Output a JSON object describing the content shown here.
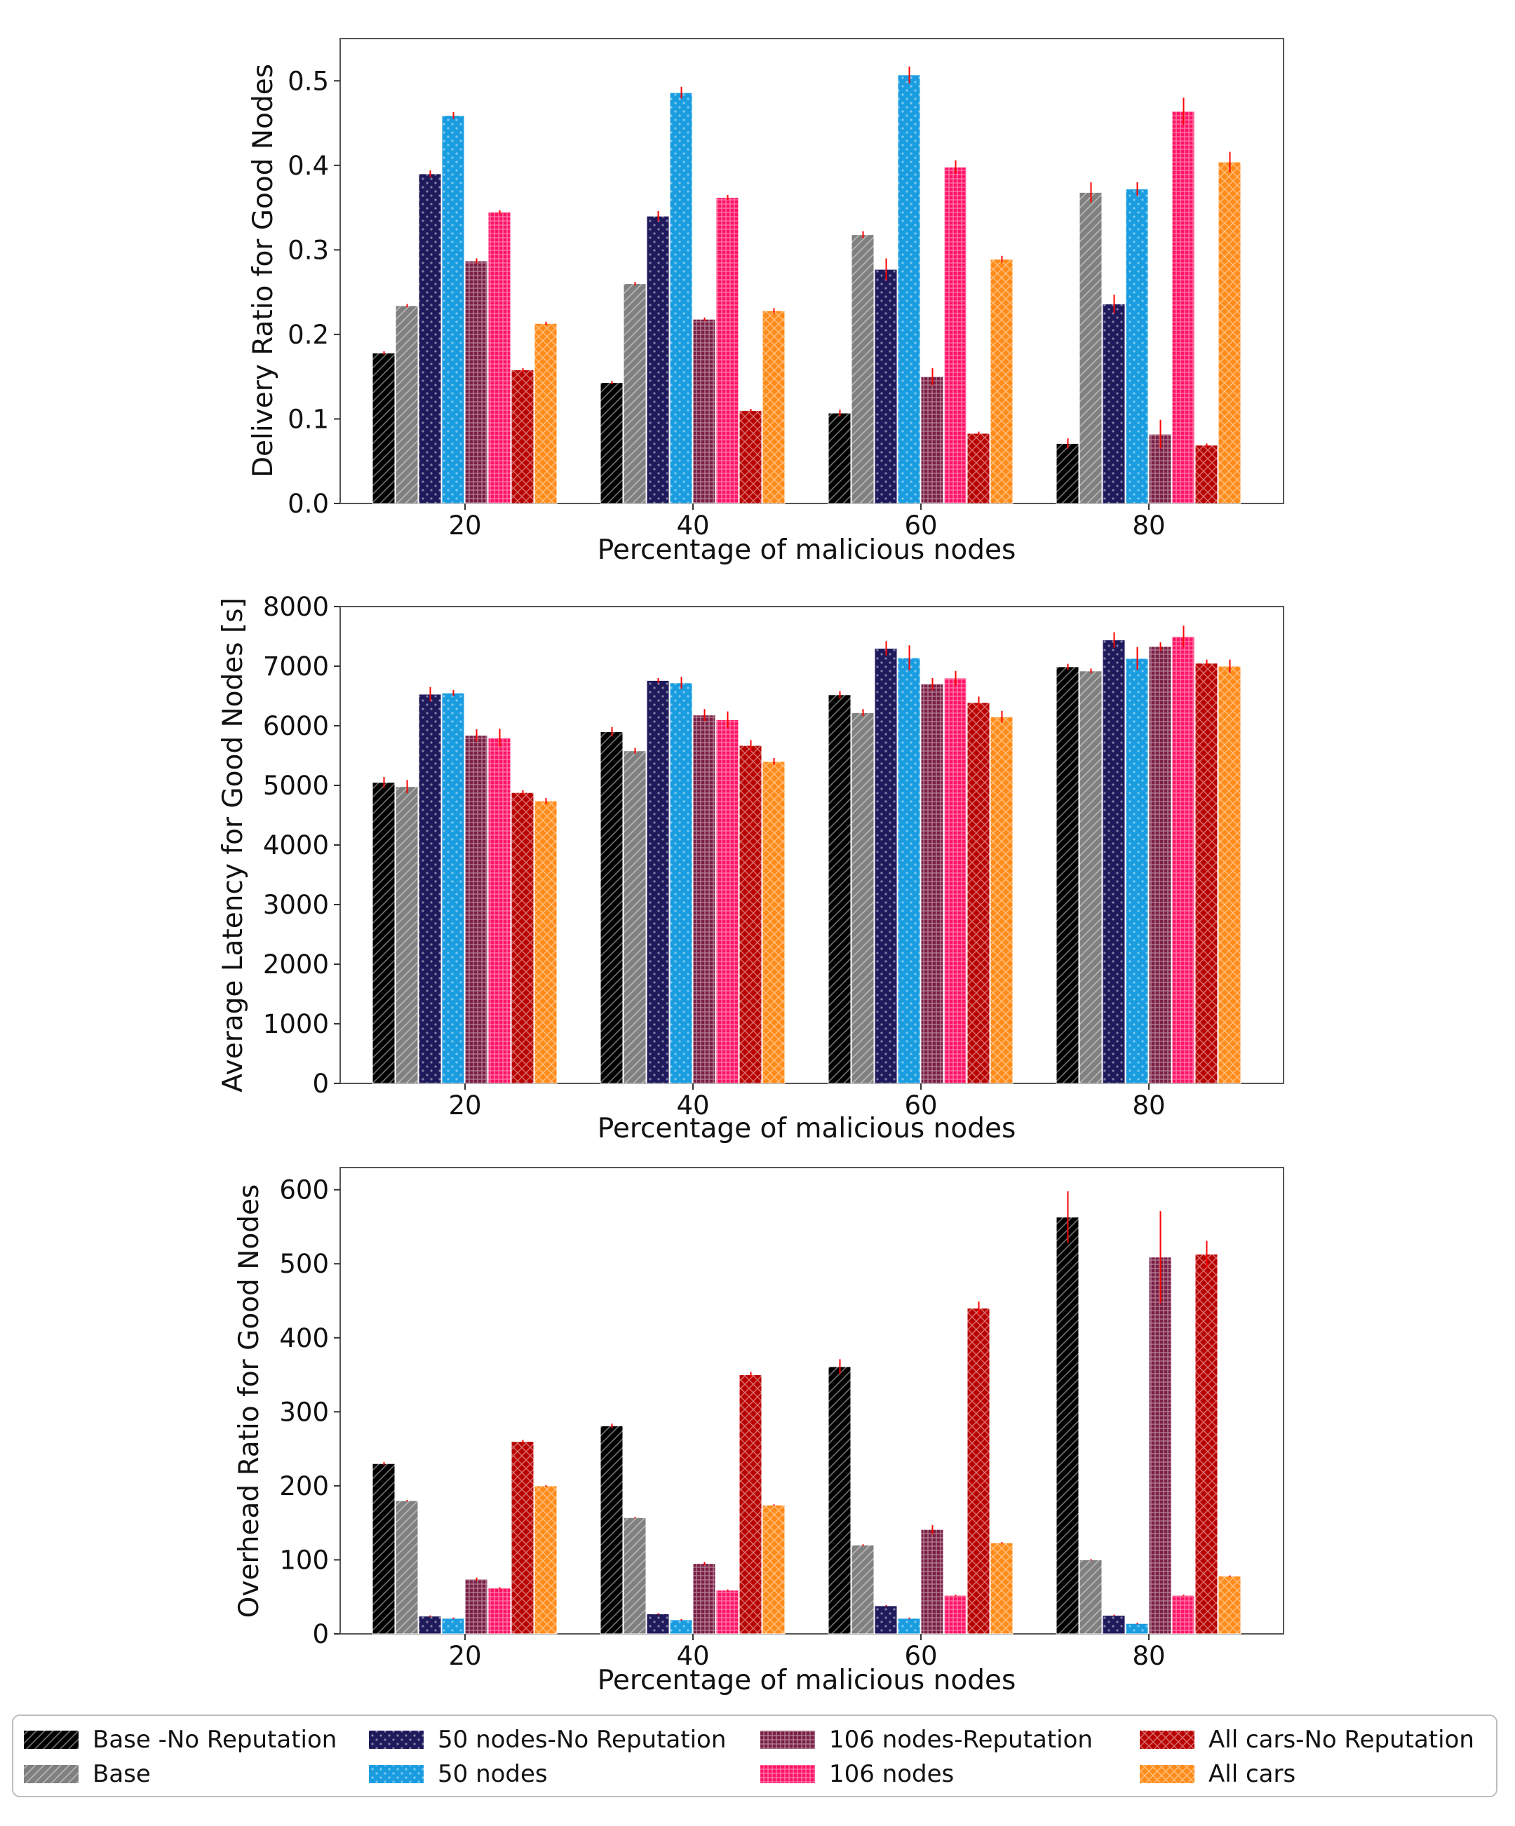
{
  "colors": {
    "Base -No Reputation": "#000000",
    "Base": "#808080",
    "50 nodes-No Reputation": "#1f1a5c",
    "50 nodes": "#1a9de0",
    "106 nodes-Reputation": "#7a1f45",
    "106 nodes": "#ff1466",
    "All cars-No Reputation": "#b80000",
    "All cars": "#ff8c1a",
    "error": "#ff0000"
  },
  "patterns": {
    "Base -No Reputation": "diag",
    "Base": "diag",
    "50 nodes-No Reputation": "dots",
    "50 nodes": "dots",
    "106 nodes-Reputation": "grid",
    "106 nodes": "grid",
    "All cars-No Reputation": "cross",
    "All cars": "cross"
  },
  "legend": {
    "entries": [
      "Base -No Reputation",
      "Base",
      "50 nodes-No Reputation",
      "50 nodes",
      "106 nodes-Reputation",
      "106 nodes",
      "All cars-No Reputation",
      "All cars"
    ]
  },
  "chart_data": [
    {
      "type": "bar",
      "title": "",
      "xlabel": "Percentage of malicious nodes",
      "ylabel": "Delivery Ratio for Good Nodes",
      "categories": [
        "20",
        "40",
        "60",
        "80"
      ],
      "ylim": [
        0,
        0.55
      ],
      "yticks": [
        0.0,
        0.1,
        0.2,
        0.3,
        0.4,
        0.5
      ],
      "ytick_labels": [
        "0.0",
        "0.1",
        "0.2",
        "0.3",
        "0.4",
        "0.5"
      ],
      "series": [
        {
          "name": "Base -No Reputation",
          "values": [
            0.178,
            0.143,
            0.107,
            0.071
          ],
          "errors": [
            0.002,
            0.002,
            0.004,
            0.006
          ]
        },
        {
          "name": "Base",
          "values": [
            0.234,
            0.26,
            0.318,
            0.368
          ],
          "errors": [
            0.002,
            0.002,
            0.004,
            0.012
          ]
        },
        {
          "name": "50 nodes-No Reputation",
          "values": [
            0.39,
            0.34,
            0.277,
            0.236
          ],
          "errors": [
            0.004,
            0.006,
            0.013,
            0.011
          ]
        },
        {
          "name": "50 nodes",
          "values": [
            0.459,
            0.486,
            0.507,
            0.372
          ],
          "errors": [
            0.004,
            0.007,
            0.01,
            0.008
          ]
        },
        {
          "name": "106 nodes-Reputation",
          "values": [
            0.287,
            0.218,
            0.15,
            0.082
          ],
          "errors": [
            0.003,
            0.002,
            0.01,
            0.017
          ]
        },
        {
          "name": "106 nodes",
          "values": [
            0.345,
            0.362,
            0.398,
            0.464
          ],
          "errors": [
            0.002,
            0.003,
            0.008,
            0.016
          ]
        },
        {
          "name": "All cars-No Reputation",
          "values": [
            0.158,
            0.11,
            0.083,
            0.069
          ],
          "errors": [
            0.002,
            0.002,
            0.002,
            0.002
          ]
        },
        {
          "name": "All cars",
          "values": [
            0.213,
            0.228,
            0.289,
            0.404
          ],
          "errors": [
            0.002,
            0.003,
            0.004,
            0.012
          ]
        }
      ]
    },
    {
      "type": "bar",
      "title": "",
      "xlabel": "Percentage of malicious nodes",
      "ylabel": "Average Latency for Good Nodes [s]",
      "categories": [
        "20",
        "40",
        "60",
        "80"
      ],
      "ylim": [
        0,
        8000
      ],
      "yticks": [
        0,
        1000,
        2000,
        3000,
        4000,
        5000,
        6000,
        7000,
        8000
      ],
      "ytick_labels": [
        "0",
        "1000",
        "2000",
        "3000",
        "4000",
        "5000",
        "6000",
        "7000",
        "8000"
      ],
      "series": [
        {
          "name": "Base -No Reputation",
          "values": [
            5050,
            5900,
            6520,
            6990
          ],
          "errors": [
            90,
            80,
            60,
            50
          ]
        },
        {
          "name": "Base",
          "values": [
            4980,
            5580,
            6220,
            6920
          ],
          "errors": [
            110,
            50,
            60,
            40
          ]
        },
        {
          "name": "50 nodes-No Reputation",
          "values": [
            6530,
            6760,
            7300,
            7440
          ],
          "errors": [
            120,
            40,
            120,
            130
          ]
        },
        {
          "name": "50 nodes",
          "values": [
            6550,
            6720,
            7140,
            7130
          ],
          "errors": [
            50,
            100,
            210,
            190
          ]
        },
        {
          "name": "106 nodes-Reputation",
          "values": [
            5840,
            6180,
            6700,
            7330
          ],
          "errors": [
            100,
            100,
            100,
            70
          ]
        },
        {
          "name": "106 nodes",
          "values": [
            5800,
            6100,
            6800,
            7500
          ],
          "errors": [
            150,
            140,
            120,
            180
          ]
        },
        {
          "name": "All cars-No Reputation",
          "values": [
            4880,
            5670,
            6390,
            7050
          ],
          "errors": [
            40,
            90,
            100,
            60
          ]
        },
        {
          "name": "All cars",
          "values": [
            4740,
            5400,
            6150,
            7000
          ],
          "errors": [
            50,
            60,
            100,
            110
          ]
        }
      ]
    },
    {
      "type": "bar",
      "title": "",
      "xlabel": "Percentage of malicious nodes",
      "ylabel": "Overhead Ratio for Good Nodes",
      "categories": [
        "20",
        "40",
        "60",
        "80"
      ],
      "ylim": [
        0,
        630
      ],
      "yticks": [
        0,
        100,
        200,
        300,
        400,
        500,
        600
      ],
      "ytick_labels": [
        "0",
        "100",
        "200",
        "300",
        "400",
        "500",
        "600"
      ],
      "series": [
        {
          "name": "Base -No Reputation",
          "values": [
            230,
            281,
            361,
            563
          ],
          "errors": [
            2,
            3,
            10,
            35
          ]
        },
        {
          "name": "Base",
          "values": [
            180,
            157,
            120,
            100
          ],
          "errors": [
            1,
            1,
            1,
            1
          ]
        },
        {
          "name": "50 nodes-No Reputation",
          "values": [
            24,
            27,
            38,
            25
          ],
          "errors": [
            1,
            1,
            1,
            1
          ]
        },
        {
          "name": "50 nodes",
          "values": [
            21,
            19,
            21,
            14
          ],
          "errors": [
            1,
            1,
            1,
            1
          ]
        },
        {
          "name": "106 nodes-Reputation",
          "values": [
            74,
            95,
            141,
            509
          ],
          "errors": [
            2,
            2,
            6,
            62
          ]
        },
        {
          "name": "106 nodes",
          "values": [
            62,
            59,
            52,
            52
          ],
          "errors": [
            1,
            1,
            1,
            1
          ]
        },
        {
          "name": "All cars-No Reputation",
          "values": [
            260,
            350,
            440,
            513
          ],
          "errors": [
            2,
            4,
            9,
            18
          ]
        },
        {
          "name": "All cars",
          "values": [
            200,
            174,
            123,
            78
          ],
          "errors": [
            1,
            1,
            1,
            1
          ]
        }
      ]
    }
  ]
}
